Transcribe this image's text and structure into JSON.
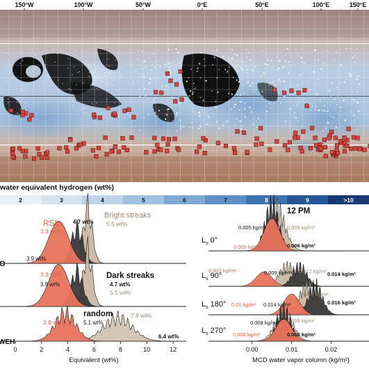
{
  "colors": {
    "rsl": "#e8735c",
    "dark": "#3a3a3a",
    "bright": "#c9b8a4",
    "random": "#d2c3b0",
    "random_outline": "#1a1a1a",
    "rsl_text": "#e2644a",
    "bright_text": "#9c8a78",
    "map_marker": "#d9453d"
  },
  "map": {
    "top_lon_labels": [
      "150°W",
      "100°W",
      "50°W",
      "0°E",
      "50°E",
      "100°E",
      "150°E"
    ],
    "colorbar_title": "water equivalent hydrogen (wt%)",
    "colorbar_ticks": [
      "2",
      "3",
      "4",
      "5",
      "6",
      "7",
      "8",
      "9",
      ">10"
    ],
    "colorbar_colors": [
      "#e8f0f8",
      "#d4e3f1",
      "#bcd3ea",
      "#9fc0e0",
      "#7fa9d3",
      "#5e90c3",
      "#3f73ad",
      "#285694",
      "#183a73"
    ]
  },
  "chart_data": [
    {
      "type": "area",
      "title": "",
      "xlabel": "Equivalent (wt%)",
      "xticks": [
        "0",
        "2",
        "4",
        "6",
        "8",
        "10",
        "12"
      ],
      "xlim": [
        0,
        13
      ],
      "side_label": "WEH",
      "side_label_partial": "O",
      "panels": [
        {
          "name": "rsl-vs-bright",
          "series": [
            {
              "name": "RSL",
              "peak": 3.3,
              "sigma": 0.75,
              "height": 0.78,
              "annotation": "3.3 wt%"
            },
            {
              "name": "",
              "peak": 4.7,
              "sigma": 0.45,
              "height": 0.62,
              "annotation": "4.7 wt%"
            },
            {
              "name": "Bright streaks",
              "peak": 5.5,
              "sigma": 0.35,
              "height": 1.0,
              "annotation": "5.5 wt%"
            }
          ],
          "extra_annotation": "3.9 wt%"
        },
        {
          "name": "rsl-vs-dark",
          "title": "Dark streaks",
          "series": [
            {
              "name": "RSL",
              "peak": 3.3,
              "sigma": 0.75,
              "height": 0.78,
              "annotation": "3.3 wt%"
            },
            {
              "name": "Dark streaks",
              "peak": 4.7,
              "sigma": 0.45,
              "height": 0.62,
              "annotation": "4.7 wt%"
            },
            {
              "name": "",
              "peak": 5.5,
              "sigma": 0.35,
              "height": 1.0,
              "annotation": "5.5 wt%"
            }
          ],
          "extra_annotation": "3.9 wt%"
        },
        {
          "name": "rsl-vs-random",
          "title": "random",
          "series": [
            {
              "name": "RSL",
              "peak": 3.8,
              "sigma": 0.8,
              "height": 0.65,
              "annotation": "3.8 wt%"
            },
            {
              "name": "random",
              "peak": 7.8,
              "sigma": 1.1,
              "height": 0.55,
              "annotation": "7.8 wt%"
            }
          ],
          "extra_annotations": [
            "5.1 wt%",
            "6.4 wt%"
          ]
        }
      ]
    },
    {
      "type": "area",
      "title": "12 PM",
      "xlabel": "MCD water vapor column (kg/m²)",
      "xticks": [
        "0.00",
        "0.01",
        "0.02"
      ],
      "xlim": [
        -0.004,
        0.025
      ],
      "row_labels": [
        {
          "main": "L",
          "sub": "s",
          "suffix": " 0°"
        },
        {
          "main": "L",
          "sub": "s",
          "suffix": " 90°"
        },
        {
          "main": "L",
          "sub": "s",
          "suffix": " 180°"
        },
        {
          "main": "L",
          "sub": "s",
          "suffix": " 270°"
        }
      ],
      "panels": [
        {
          "season": "0°",
          "annotations": [
            "0.005 kg/m²",
            "0.005 kg/m²",
            "0.005 kg/m²",
            "0.006 kg/m²"
          ],
          "series": [
            {
              "name": "RSL",
              "peak": 0.005
            },
            {
              "name": "Dark streaks",
              "peak": 0.006
            },
            {
              "name": "Bright streaks",
              "peak": 0.005
            }
          ]
        },
        {
          "season": "90°",
          "annotations": [
            "0.003 kg/m²",
            "0.009 kg/m²",
            "0.012 kg/m²",
            "0.014 kg/m²"
          ],
          "series": [
            {
              "name": "RSL",
              "peak": 0.003
            },
            {
              "name": "Dark streaks",
              "peak": 0.009
            },
            {
              "name": "Bright streaks",
              "peak": 0.012
            }
          ]
        },
        {
          "season": "180°",
          "annotations": [
            "0.01 kg/m²",
            "0.014 kg/m²",
            "0.016 kg/m²",
            "0.016 kg/m²"
          ],
          "series": [
            {
              "name": "RSL",
              "peak": 0.01
            },
            {
              "name": "Dark streaks",
              "peak": 0.014
            },
            {
              "name": "Bright streaks",
              "peak": 0.016
            }
          ]
        },
        {
          "season": "270°",
          "annotations": [
            "0.008 kg/m²",
            "0.008 kg/m²",
            "0.008 kg/m²",
            "0.008 kg/m²"
          ],
          "series": [
            {
              "name": "RSL",
              "peak": 0.008
            },
            {
              "name": "Dark streaks",
              "peak": 0.008
            },
            {
              "name": "Bright streaks",
              "peak": 0.008
            }
          ]
        }
      ]
    }
  ]
}
